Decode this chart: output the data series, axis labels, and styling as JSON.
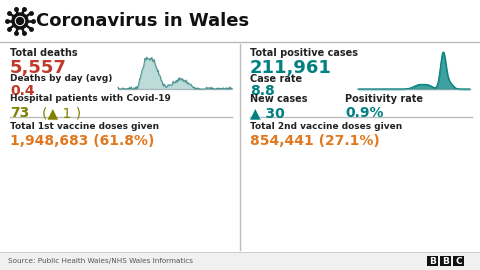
{
  "title": "Coronavirus in Wales",
  "bg_color": "#ffffff",
  "title_color": "#111111",
  "left_col": {
    "total_deaths_label": "Total deaths",
    "total_deaths_value": "5,557",
    "total_deaths_color": "#c0392b",
    "deaths_avg_label": "Deaths by day (avg)",
    "deaths_avg_value": "0.4",
    "deaths_avg_color": "#c0392b",
    "hospital_label": "Hospital patients with Covid-19",
    "hospital_value": "73",
    "hospital_color": "#808000",
    "hospital_change": "(▲ 1 )",
    "hospital_change_color": "#808000",
    "vaccine1_label": "Total 1st vaccine doses given",
    "vaccine1_value": "1,948,683 (61.8%)",
    "vaccine1_color": "#e07820"
  },
  "right_col": {
    "total_cases_label": "Total positive cases",
    "total_cases_value": "211,961",
    "total_cases_color": "#008080",
    "case_rate_label": "Case rate",
    "case_rate_value": "8.8",
    "case_rate_color": "#008080",
    "new_cases_label": "New cases",
    "new_cases_value": "▲ 30",
    "new_cases_color": "#008080",
    "positivity_label": "Positivity rate",
    "positivity_value": "0.9%",
    "positivity_color": "#008080",
    "vaccine2_label": "Total 2nd vaccine doses given",
    "vaccine2_value": "854,441 (27.1%)",
    "vaccine2_color": "#e07820"
  },
  "source": "Source: Public Health Wales/NHS Wales Informatics",
  "divider_color": "#bbbbbb",
  "label_color": "#222222"
}
